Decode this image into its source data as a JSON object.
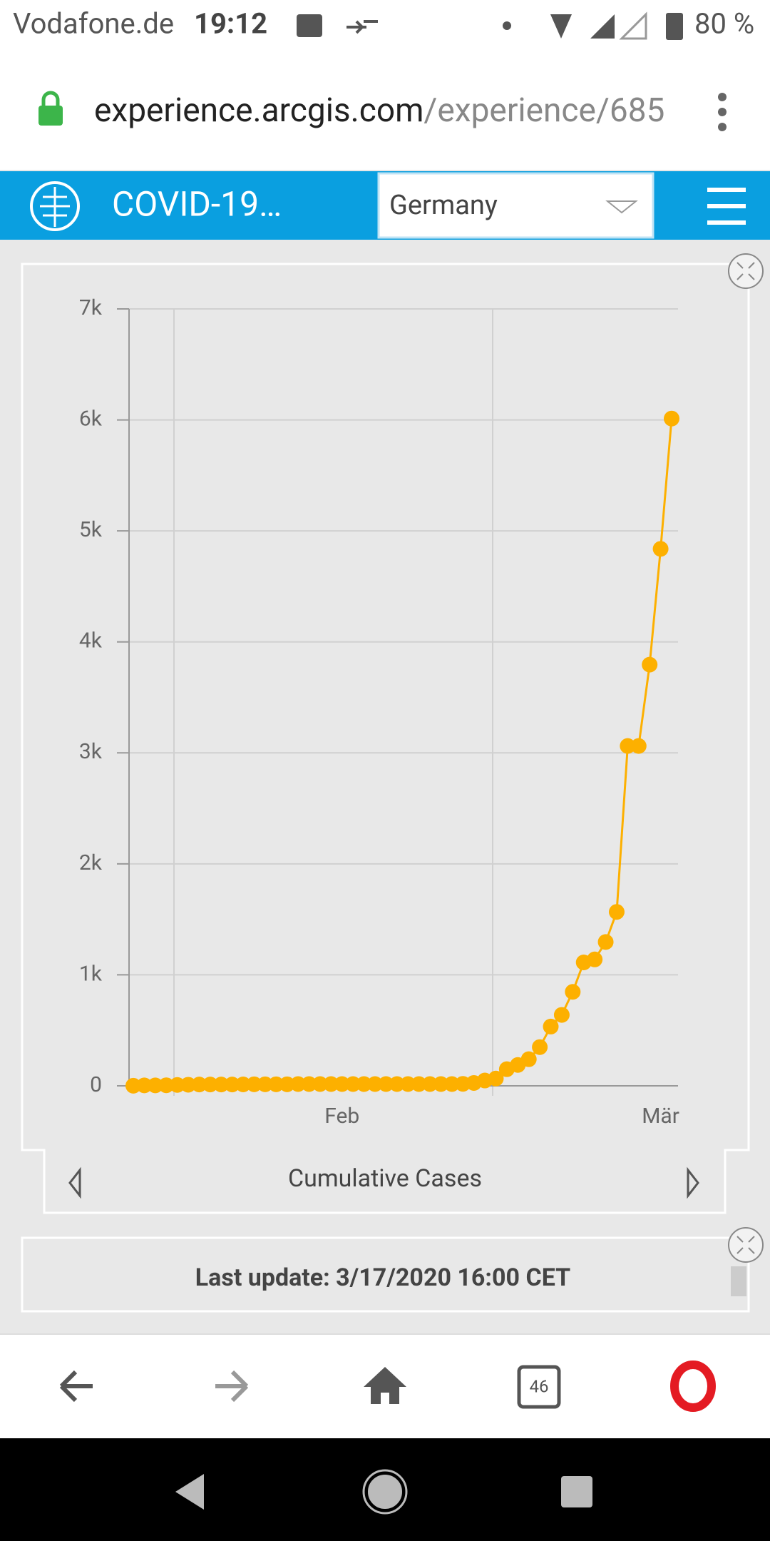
{
  "status_bar": {
    "carrier": "Vodafone.de",
    "time": "19:12",
    "battery": "80 %"
  },
  "address_bar": {
    "host": "experience.arcgis.com",
    "path": "/experience/685"
  },
  "header": {
    "title": "COVID-19…",
    "country": "Germany"
  },
  "chart_selector": {
    "label": "Cumulative Cases"
  },
  "footer": {
    "last_update": "Last update: 3/17/2020 16:00 CET"
  },
  "tabs": {
    "count": "46"
  },
  "chart_data": {
    "type": "line",
    "color": "#fdb000",
    "categories": [
      null,
      null,
      null,
      null,
      null,
      null,
      null,
      null,
      null,
      null,
      null,
      null,
      null,
      null,
      null,
      null,
      null,
      null,
      null,
      "Feb",
      null,
      null,
      null,
      null,
      null,
      null,
      null,
      null,
      null,
      null,
      null,
      null,
      null,
      null,
      null,
      null,
      null,
      null,
      null,
      null,
      null,
      null,
      null,
      null,
      null,
      null,
      null,
      null,
      "Mär",
      null
    ],
    "values": [
      1,
      4,
      4,
      5,
      8,
      10,
      12,
      12,
      12,
      12,
      13,
      14,
      14,
      14,
      14,
      16,
      16,
      16,
      16,
      16,
      16,
      16,
      16,
      16,
      16,
      16,
      16,
      16,
      16,
      16,
      18,
      26,
      48,
      66,
      150,
      188,
      240,
      349,
      534,
      639,
      847,
      1112,
      1139,
      1296,
      1567,
      3062,
      3062,
      3795,
      4838,
      6012
    ],
    "ylim": [
      0,
      7000
    ],
    "yticks": [
      {
        "value": 0,
        "label": "0"
      },
      {
        "value": 1000,
        "label": "1k"
      },
      {
        "value": 2000,
        "label": "2k"
      },
      {
        "value": 3000,
        "label": "3k"
      },
      {
        "value": 4000,
        "label": "4k"
      },
      {
        "value": 5000,
        "label": "5k"
      },
      {
        "value": 6000,
        "label": "6k"
      },
      {
        "value": 7000,
        "label": "7k"
      }
    ],
    "grid": true
  }
}
